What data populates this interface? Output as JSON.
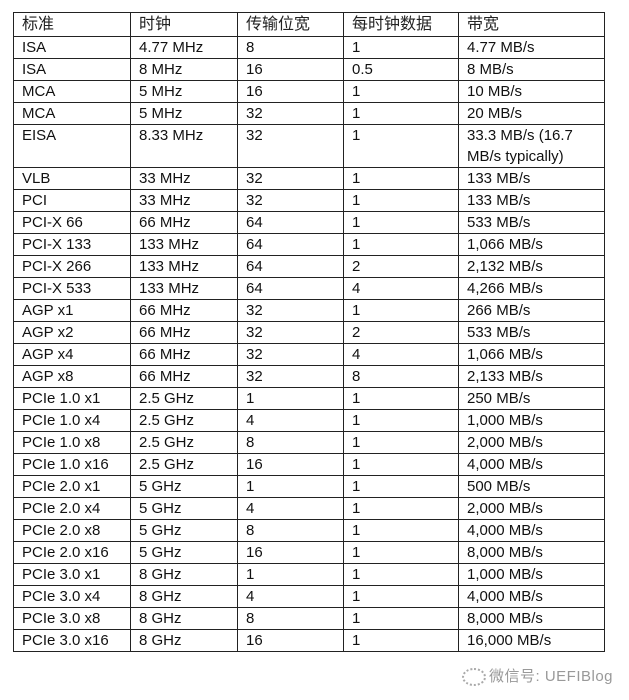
{
  "table": {
    "headers": [
      "标准",
      "时钟",
      "传输位宽",
      "每时钟数据",
      "带宽"
    ],
    "rows": [
      [
        "ISA",
        "4.77 MHz",
        "8",
        "1",
        "4.77 MB/s"
      ],
      [
        "ISA",
        "8 MHz",
        "16",
        "0.5",
        "8 MB/s"
      ],
      [
        "MCA",
        "5 MHz",
        "16",
        "1",
        "10 MB/s"
      ],
      [
        "MCA",
        "5 MHz",
        "32",
        "1",
        "20 MB/s"
      ],
      [
        "EISA",
        "8.33 MHz",
        "32",
        "1",
        "33.3 MB/s (16.7 MB/s typically)"
      ],
      [
        "VLB",
        "33 MHz",
        "32",
        "1",
        "133 MB/s"
      ],
      [
        "PCI",
        "33 MHz",
        "32",
        "1",
        "133 MB/s"
      ],
      [
        "PCI-X 66",
        "66 MHz",
        "64",
        "1",
        "533 MB/s"
      ],
      [
        "PCI-X 133",
        "133 MHz",
        "64",
        "1",
        "1,066 MB/s"
      ],
      [
        "PCI-X 266",
        "133 MHz",
        "64",
        "2",
        "2,132 MB/s"
      ],
      [
        "PCI-X 533",
        "133 MHz",
        "64",
        "4",
        "4,266 MB/s"
      ],
      [
        "AGP x1",
        "66 MHz",
        "32",
        "1",
        "266 MB/s"
      ],
      [
        "AGP x2",
        "66 MHz",
        "32",
        "2",
        "533 MB/s"
      ],
      [
        "AGP x4",
        "66 MHz",
        "32",
        "4",
        "1,066 MB/s"
      ],
      [
        "AGP x8",
        "66 MHz",
        "32",
        "8",
        "2,133 MB/s"
      ],
      [
        "PCIe 1.0 x1",
        "2.5 GHz",
        "1",
        "1",
        "250 MB/s"
      ],
      [
        "PCIe 1.0 x4",
        "2.5 GHz",
        "4",
        "1",
        "1,000 MB/s"
      ],
      [
        "PCIe 1.0 x8",
        "2.5 GHz",
        "8",
        "1",
        "2,000 MB/s"
      ],
      [
        "PCIe 1.0 x16",
        "2.5 GHz",
        "16",
        "1",
        "4,000 MB/s"
      ],
      [
        "PCIe 2.0 x1",
        "5 GHz",
        "1",
        "1",
        "500 MB/s"
      ],
      [
        "PCIe 2.0 x4",
        "5 GHz",
        "4",
        "1",
        "2,000 MB/s"
      ],
      [
        "PCIe 2.0 x8",
        "5 GHz",
        "8",
        "1",
        "4,000 MB/s"
      ],
      [
        "PCIe 2.0 x16",
        "5 GHz",
        "16",
        "1",
        "8,000 MB/s"
      ],
      [
        "PCIe 3.0 x1",
        "8 GHz",
        "1",
        "1",
        "1,000 MB/s"
      ],
      [
        "PCIe 3.0 x4",
        "8 GHz",
        "4",
        "1",
        "4,000 MB/s"
      ],
      [
        "PCIe 3.0 x8",
        "8 GHz",
        "8",
        "1",
        "8,000 MB/s"
      ],
      [
        "PCIe 3.0 x16",
        "8 GHz",
        "16",
        "1",
        "16,000 MB/s"
      ]
    ]
  },
  "watermark": {
    "text": "微信号: UEFIBlog",
    "icon": "wechat-icon"
  }
}
